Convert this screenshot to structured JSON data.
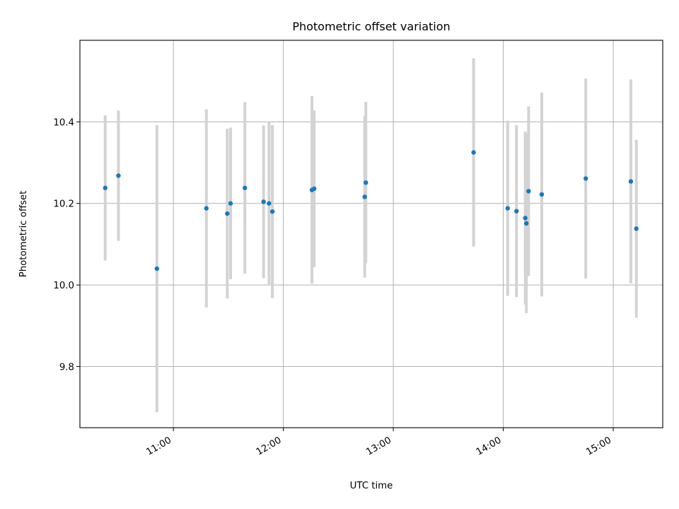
{
  "chart_data": {
    "type": "scatter",
    "title": "Photometric offset variation",
    "xlabel": "UTC time",
    "ylabel": "Photometric offset",
    "x_tick_labels": [
      "11:00",
      "12:00",
      "13:00",
      "14:00",
      "15:00"
    ],
    "y_tick_labels": [
      "9.8",
      "10.0",
      "10.2",
      "10.4"
    ],
    "x_ticks_hours": [
      11,
      12,
      13,
      14,
      15
    ],
    "y_ticks": [
      9.8,
      10.0,
      10.2,
      10.4
    ],
    "xlim_hours": [
      10.15,
      15.45
    ],
    "ylim": [
      9.65,
      10.6
    ],
    "grid": true,
    "point_color": "#1f77b4",
    "errorbar_color": "#d3d3d3",
    "points": [
      {
        "time": "10:23",
        "t": 10.38,
        "y": 10.238,
        "err": 0.178
      },
      {
        "time": "10:30",
        "t": 10.5,
        "y": 10.268,
        "err": 0.16
      },
      {
        "time": "10:51",
        "t": 10.85,
        "y": 10.04,
        "err": 0.352
      },
      {
        "time": "11:18",
        "t": 11.3,
        "y": 10.188,
        "err": 0.243
      },
      {
        "time": "11:29",
        "t": 11.49,
        "y": 10.175,
        "err": 0.208
      },
      {
        "time": "11:31",
        "t": 11.52,
        "y": 10.2,
        "err": 0.186
      },
      {
        "time": "11:39",
        "t": 11.65,
        "y": 10.238,
        "err": 0.21
      },
      {
        "time": "11:49",
        "t": 11.82,
        "y": 10.204,
        "err": 0.187
      },
      {
        "time": "11:52",
        "t": 11.87,
        "y": 10.2,
        "err": 0.2
      },
      {
        "time": "11:54",
        "t": 11.9,
        "y": 10.18,
        "err": 0.212
      },
      {
        "time": "12:15",
        "t": 12.26,
        "y": 10.233,
        "err": 0.23
      },
      {
        "time": "12:17",
        "t": 12.28,
        "y": 10.236,
        "err": 0.192
      },
      {
        "time": "12:44",
        "t": 12.74,
        "y": 10.216,
        "err": 0.198
      },
      {
        "time": "12:45",
        "t": 12.75,
        "y": 10.251,
        "err": 0.198
      },
      {
        "time": "13:44",
        "t": 13.73,
        "y": 10.325,
        "err": 0.231
      },
      {
        "time": "14:02",
        "t": 14.04,
        "y": 10.188,
        "err": 0.215
      },
      {
        "time": "14:07",
        "t": 14.12,
        "y": 10.181,
        "err": 0.211
      },
      {
        "time": "14:12",
        "t": 14.2,
        "y": 10.164,
        "err": 0.212
      },
      {
        "time": "14:13",
        "t": 14.21,
        "y": 10.151,
        "err": 0.22
      },
      {
        "time": "14:14",
        "t": 14.23,
        "y": 10.23,
        "err": 0.208
      },
      {
        "time": "14:21",
        "t": 14.35,
        "y": 10.222,
        "err": 0.25
      },
      {
        "time": "14:45",
        "t": 14.75,
        "y": 10.261,
        "err": 0.245
      },
      {
        "time": "15:10",
        "t": 15.16,
        "y": 10.254,
        "err": 0.25
      },
      {
        "time": "15:13",
        "t": 15.21,
        "y": 10.138,
        "err": 0.218
      }
    ]
  }
}
